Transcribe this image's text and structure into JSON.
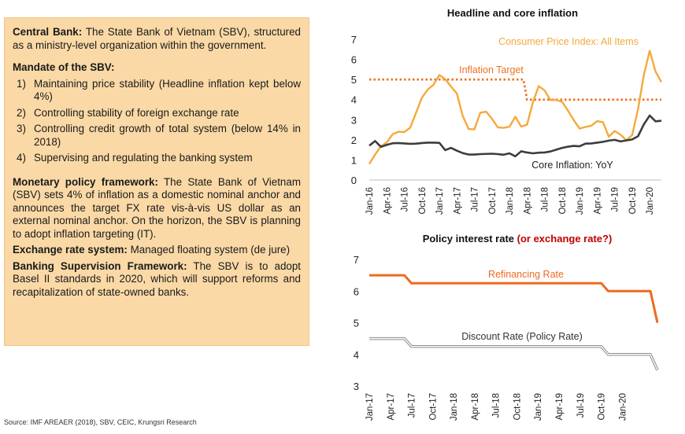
{
  "textbox": {
    "central_bank_label": "Central Bank:",
    "central_bank_text": " The State Bank of Vietnam (SBV), structured as a ministry-level organization within the government.",
    "mandate_title": "Mandate of the SBV:",
    "mandate_items": [
      {
        "num": "1)",
        "text": "Maintaining price stability (Headline inflation kept below 4%)"
      },
      {
        "num": "2)",
        "text": "Controlling stability of foreign exchange rate"
      },
      {
        "num": "3)",
        "text": "Controlling credit growth of total system (below 14% in 2018)"
      },
      {
        "num": "4)",
        "text": "Supervising and regulating the banking system"
      }
    ],
    "monetary_label": "Monetary policy framework:",
    "monetary_text": " The State Bank of Vietnam (SBV) sets 4% of inflation as a domestic nominal anchor and announces the target FX rate vis-à-vis US dollar as an external nominal anchor. On the horizon, the SBV is planning to adopt inflation targeting (IT).",
    "fx_label": "Exchange rate system:",
    "fx_text": " Managed floating system (de jure)",
    "banking_label": "Banking Supervision Framework:",
    "banking_text": " The SBV is to adopt Basel II standards in 2020, which will support reforms and recapitalization of state-owned banks."
  },
  "source": "Source: IMF AREAER (2018), SBV, CEIC, Krungsri Research",
  "colors": {
    "cpi": "#f5a93a",
    "core": "#3d3d3d",
    "target": "#ee7322",
    "refinancing": "#ee6a1f",
    "discount_stroke": "#8c8c8c",
    "discount_fill": "#ffffff",
    "policy_title_accent": "#c00000"
  },
  "chart_data": [
    {
      "type": "line",
      "title": "Headline and core inflation",
      "ylim": [
        0,
        7
      ],
      "yticks": [
        "0",
        "1",
        "2",
        "3",
        "4",
        "5",
        "6",
        "7"
      ],
      "xtick_labels": [
        "Jan-16",
        "Apr-16",
        "Jul-16",
        "Oct-16",
        "Jan-17",
        "Apr-17",
        "Jul-17",
        "Oct-17",
        "Jan-18",
        "Apr-18",
        "Jul-18",
        "Oct-18",
        "Jan-19",
        "Apr-19",
        "Jul-19",
        "Oct-19",
        "Jan-20"
      ],
      "grid": false,
      "series": [
        {
          "name": "Consumer Price Index: All Items",
          "style": "solid",
          "values": [
            0.8,
            1.27,
            1.69,
            1.87,
            2.28,
            2.4,
            2.39,
            2.6,
            3.34,
            4.09,
            4.5,
            4.74,
            5.22,
            5.02,
            4.65,
            4.3,
            3.19,
            2.54,
            2.52,
            3.35,
            3.4,
            3.05,
            2.62,
            2.6,
            2.65,
            3.15,
            2.66,
            2.75,
            3.86,
            4.67,
            4.46,
            3.98,
            3.98,
            3.89,
            3.46,
            2.98,
            2.56,
            2.64,
            2.7,
            2.93,
            2.88,
            2.16,
            2.44,
            2.26,
            1.98,
            2.24,
            3.52,
            5.23,
            6.43,
            5.4,
            4.87
          ]
        },
        {
          "name": "Core Inflation: YoY",
          "style": "solid",
          "values": [
            1.71,
            1.94,
            1.65,
            1.75,
            1.83,
            1.84,
            1.82,
            1.8,
            1.81,
            1.84,
            1.86,
            1.86,
            1.85,
            1.49,
            1.6,
            1.46,
            1.34,
            1.27,
            1.27,
            1.29,
            1.3,
            1.31,
            1.29,
            1.26,
            1.33,
            1.18,
            1.43,
            1.37,
            1.33,
            1.36,
            1.37,
            1.42,
            1.51,
            1.6,
            1.66,
            1.7,
            1.68,
            1.81,
            1.82,
            1.86,
            1.9,
            1.96,
            2.0,
            1.92,
            1.97,
            2.02,
            2.18,
            2.77,
            3.21,
            2.92,
            2.95
          ]
        },
        {
          "name": "Inflation Target",
          "style": "dotted",
          "values": [
            5,
            5,
            5,
            5,
            5,
            5,
            5,
            5,
            5,
            5,
            5,
            5,
            5,
            5,
            5,
            5,
            5,
            5,
            5,
            5,
            5,
            5,
            5,
            5,
            5,
            5,
            5,
            4,
            4,
            4,
            4,
            4,
            4,
            4,
            4,
            4,
            4,
            4,
            4,
            4,
            4,
            4,
            4,
            4,
            4,
            4,
            4,
            4,
            4,
            4,
            4
          ]
        }
      ]
    },
    {
      "type": "line",
      "title": "Policy interest rate ",
      "title_accent": "(or exchange rate?)",
      "ylim": [
        3,
        7
      ],
      "yticks": [
        "3",
        "4",
        "5",
        "6",
        "7"
      ],
      "xtick_labels": [
        "Jan-17",
        "Apr-17",
        "Jul-17",
        "Oct-17",
        "Jan-18",
        "Apr-18",
        "Jul-18",
        "Oct-18",
        "Jan-19",
        "Apr-19",
        "Jul-19",
        "Oct-19",
        "Jan-20"
      ],
      "grid": false,
      "series": [
        {
          "name": "Refinancing Rate",
          "values": [
            6.5,
            6.5,
            6.5,
            6.5,
            6.5,
            6.5,
            6.25,
            6.25,
            6.25,
            6.25,
            6.25,
            6.25,
            6.25,
            6.25,
            6.25,
            6.25,
            6.25,
            6.25,
            6.25,
            6.25,
            6.25,
            6.25,
            6.25,
            6.25,
            6.25,
            6.25,
            6.25,
            6.25,
            6.25,
            6.25,
            6.25,
            6.25,
            6.25,
            6.25,
            6.0,
            6.0,
            6.0,
            6.0,
            6.0,
            6.0,
            6.0,
            5.0
          ]
        },
        {
          "name": "Discount Rate (Policy Rate)",
          "values": [
            4.5,
            4.5,
            4.5,
            4.5,
            4.5,
            4.5,
            4.25,
            4.25,
            4.25,
            4.25,
            4.25,
            4.25,
            4.25,
            4.25,
            4.25,
            4.25,
            4.25,
            4.25,
            4.25,
            4.25,
            4.25,
            4.25,
            4.25,
            4.25,
            4.25,
            4.25,
            4.25,
            4.25,
            4.25,
            4.25,
            4.25,
            4.25,
            4.25,
            4.25,
            4.0,
            4.0,
            4.0,
            4.0,
            4.0,
            4.0,
            4.0,
            3.5
          ]
        }
      ]
    }
  ]
}
